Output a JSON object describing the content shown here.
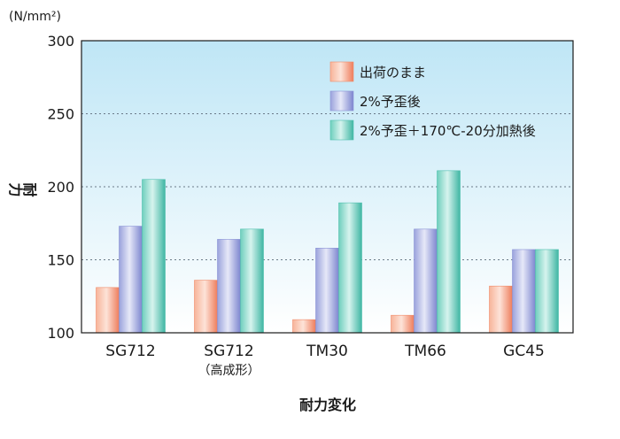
{
  "chart_data": {
    "type": "bar",
    "unit_label": "(N/mm²)",
    "ylabel": "耐力",
    "xlabel": "耐力変化",
    "ylim": [
      100,
      300
    ],
    "yticks": [
      100,
      150,
      200,
      250,
      300
    ],
    "grid": true,
    "legend_position": "top-right",
    "categories": [
      {
        "label": "SG712",
        "sublabel": ""
      },
      {
        "label": "SG712",
        "sublabel": "（高成形）"
      },
      {
        "label": "TM30",
        "sublabel": ""
      },
      {
        "label": "TM66",
        "sublabel": ""
      },
      {
        "label": "GC45",
        "sublabel": ""
      }
    ],
    "series": [
      {
        "name": "出荷のまま",
        "color": "#f08a68",
        "values": [
          131,
          136,
          109,
          112,
          132
        ]
      },
      {
        "name": "2%予歪後",
        "color": "#8a93d6",
        "values": [
          173,
          164,
          158,
          171,
          157
        ]
      },
      {
        "name": "2%予歪＋170℃-20分加熱後",
        "color": "#4fc0ae",
        "values": [
          205,
          171,
          189,
          211,
          157
        ]
      }
    ]
  }
}
